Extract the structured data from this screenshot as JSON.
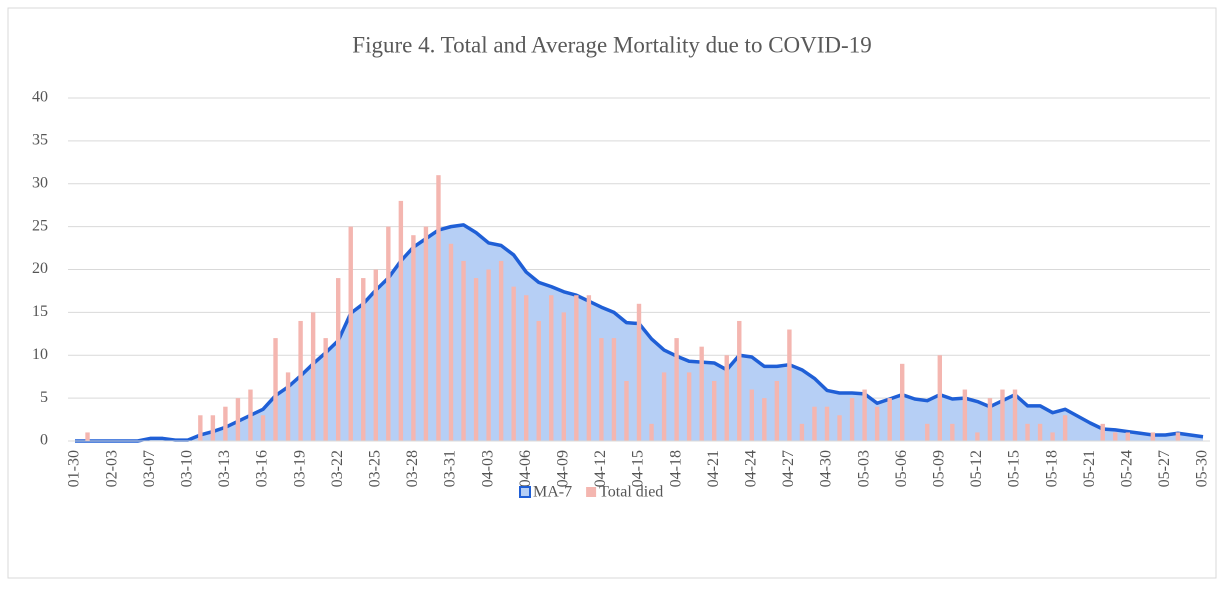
{
  "chart_data": {
    "type": "bar-line",
    "title": "Figure 4. Total and Average Mortality due to COVID-19",
    "categories": [
      "01-30",
      null,
      null,
      "02-03",
      null,
      null,
      "03-07",
      null,
      null,
      "03-10",
      null,
      null,
      "03-13",
      null,
      null,
      "03-16",
      null,
      null,
      "03-19",
      null,
      null,
      "03-22",
      null,
      null,
      "03-25",
      null,
      null,
      "03-28",
      null,
      null,
      "03-31",
      null,
      null,
      "04-03",
      null,
      null,
      "04-06",
      null,
      null,
      "04-09",
      null,
      null,
      "04-12",
      null,
      null,
      "04-15",
      null,
      null,
      "04-18",
      null,
      null,
      "04-21",
      null,
      null,
      "04-24",
      null,
      null,
      "04-27",
      null,
      null,
      "04-30",
      null,
      null,
      "05-03",
      null,
      null,
      "05-06",
      null,
      null,
      "05-09",
      null,
      null,
      "05-12",
      null,
      null,
      "05-15",
      null,
      null,
      "05-18",
      null,
      null,
      "05-21",
      null,
      null,
      "05-24",
      null,
      null,
      "05-27",
      null,
      null,
      "05-30"
    ],
    "series": [
      {
        "name": "MA-7",
        "type": "area",
        "color": "#1f5fd6",
        "fill": "#b6cff5",
        "values": [
          0,
          0,
          0,
          0,
          0,
          0,
          0.3,
          0.3,
          0.1,
          0.1,
          0.7,
          1.1,
          1.6,
          2.3,
          3.0,
          3.7,
          5.3,
          6.3,
          7.6,
          9.0,
          10.3,
          11.7,
          14.9,
          16.0,
          17.6,
          19.0,
          21.0,
          22.6,
          23.6,
          24.6,
          25.0,
          25.2,
          24.3,
          23.1,
          22.8,
          21.7,
          19.7,
          18.5,
          18.0,
          17.4,
          17.0,
          16.3,
          15.6,
          15.0,
          13.8,
          13.7,
          11.9,
          10.6,
          9.9,
          9.3,
          9.2,
          9.1,
          8.3,
          10.0,
          9.8,
          8.7,
          8.7,
          8.9,
          8.3,
          7.3,
          5.9,
          5.6,
          5.6,
          5.5,
          4.4,
          4.9,
          5.4,
          4.9,
          4.7,
          5.4,
          4.9,
          5.0,
          4.6,
          4.0,
          4.7,
          5.4,
          4.1,
          4.1,
          3.3,
          3.7,
          2.9,
          2.1,
          1.4,
          1.3,
          1.1,
          0.9,
          0.7,
          0.7,
          0.9,
          0.7,
          0.5
        ]
      },
      {
        "name": "Total died",
        "type": "bar",
        "color": "#f4b6b0",
        "values": [
          0,
          1,
          0,
          0,
          0,
          0,
          0,
          0,
          0,
          0,
          3,
          3,
          4,
          5,
          6,
          3,
          12,
          8,
          14,
          15,
          12,
          19,
          25,
          19,
          20,
          25,
          28,
          24,
          25,
          31,
          23,
          21,
          19,
          20,
          21,
          18,
          17,
          14,
          17,
          15,
          17,
          17,
          12,
          12,
          7,
          16,
          2,
          8,
          12,
          8,
          11,
          7,
          10,
          14,
          6,
          5,
          7,
          13,
          2,
          4,
          4,
          3,
          5,
          6,
          4,
          5,
          9,
          0,
          2,
          10,
          2,
          6,
          1,
          5,
          6,
          6,
          2,
          2,
          1,
          3,
          0,
          0,
          2,
          1,
          1,
          0,
          1,
          0,
          1,
          0,
          0
        ]
      }
    ],
    "ylim": [
      0,
      40
    ],
    "yticks": [
      0,
      5,
      10,
      15,
      20,
      25,
      30,
      35,
      40
    ],
    "grid": true,
    "legend": "bottom"
  }
}
